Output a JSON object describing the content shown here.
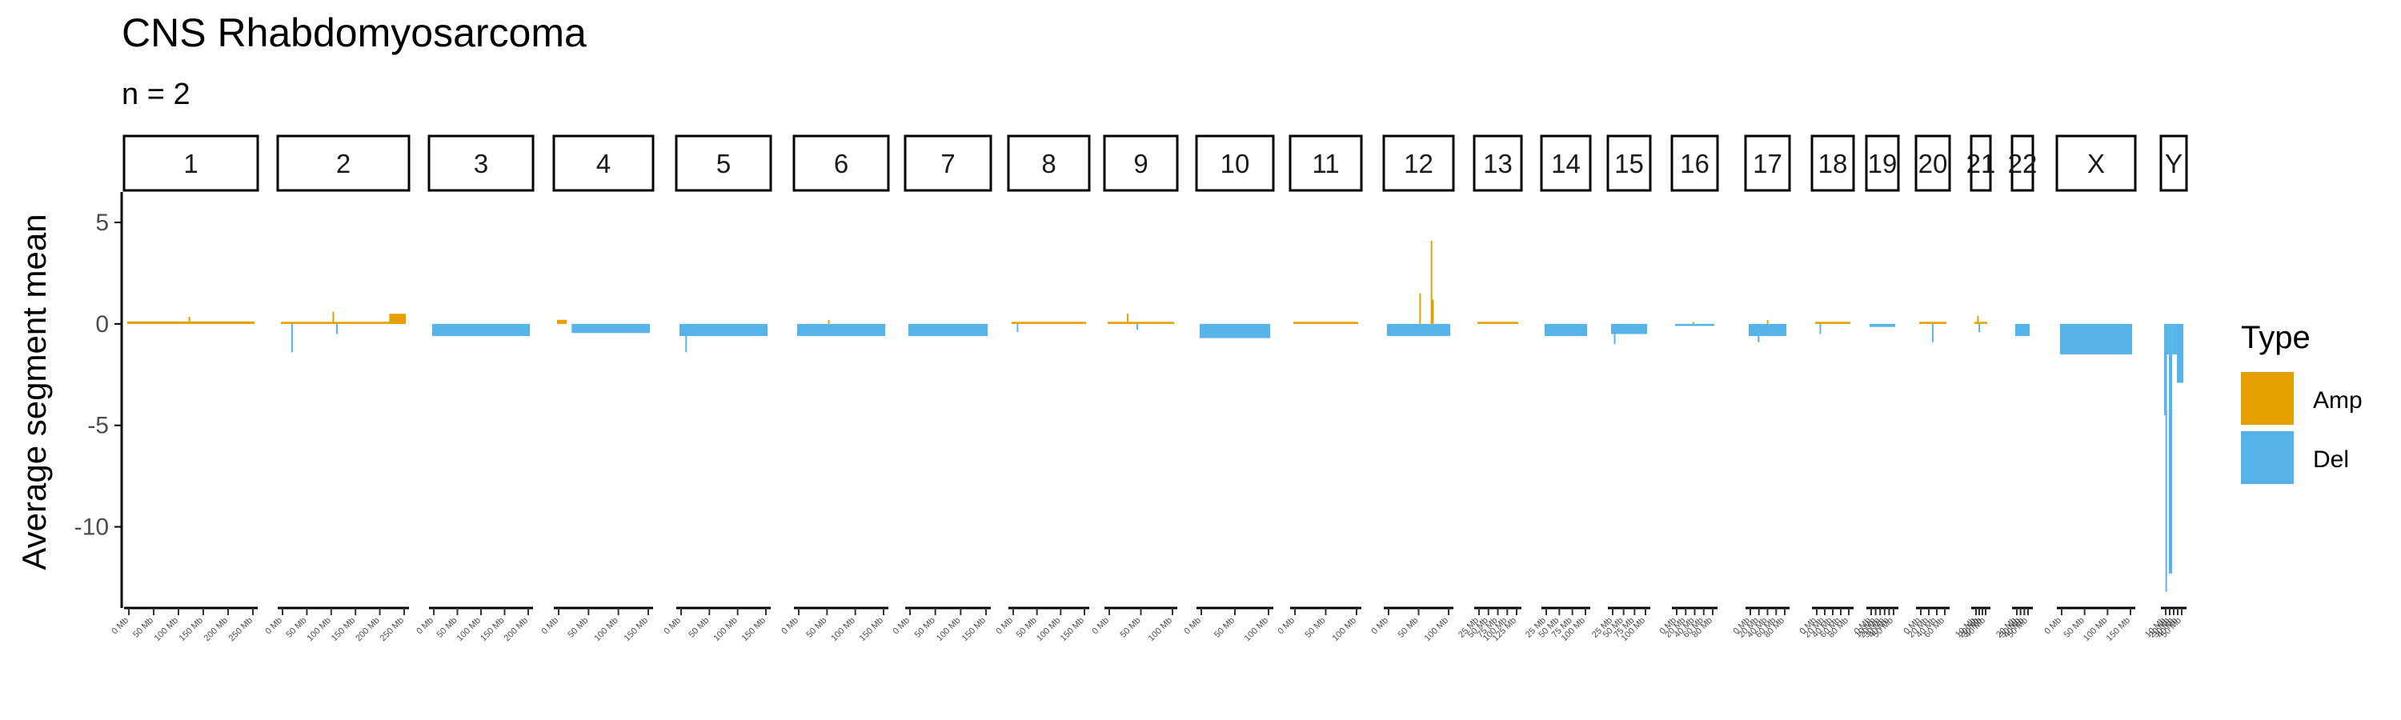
{
  "title": "CNS Rhabdomyosarcoma",
  "subtitle": "n = 2",
  "chart_data": {
    "type": "bar",
    "title": "CNS Rhabdomyosarcoma",
    "subtitle": "n = 2",
    "xlabel": "",
    "ylabel": "Average segment mean",
    "ylim": [
      -14,
      6.5
    ],
    "yticks": [
      5,
      0,
      -5,
      -10
    ],
    "grid": false,
    "legend": {
      "title": "Type",
      "position": "right",
      "entries": [
        "Amp",
        "Del"
      ]
    },
    "colors": {
      "Amp": "#E69F00",
      "Del": "#56B4E9"
    },
    "facets": [
      {
        "label": "1",
        "length_mb": 249,
        "ticks": [
          "0 Mb",
          "50 Mb",
          "100 Mb",
          "150 Mb",
          "200 Mb",
          "250 Mb"
        ],
        "segments": [
          {
            "start": 0,
            "end": 249,
            "value": 0.12,
            "type": "Amp"
          },
          {
            "start": 120,
            "end": 121,
            "value": 0.35,
            "type": "Amp"
          }
        ]
      },
      {
        "label": "2",
        "length_mb": 242,
        "ticks": [
          "0 Mb",
          "50 Mb",
          "100 Mb",
          "150 Mb",
          "200 Mb",
          "250 Mb"
        ],
        "segments": [
          {
            "start": 0,
            "end": 242,
            "value": 0.1,
            "type": "Amp"
          },
          {
            "start": 20,
            "end": 21,
            "value": -1.4,
            "type": "Del"
          },
          {
            "start": 100,
            "end": 102,
            "value": 0.6,
            "type": "Amp"
          },
          {
            "start": 107,
            "end": 108,
            "value": -0.5,
            "type": "Del"
          },
          {
            "start": 210,
            "end": 242,
            "value": 0.5,
            "type": "Amp"
          }
        ]
      },
      {
        "label": "3",
        "length_mb": 198,
        "ticks": [
          "0 Mb",
          "50 Mb",
          "100 Mb",
          "150 Mb",
          "200 Mb"
        ],
        "segments": [
          {
            "start": 0,
            "end": 198,
            "value": -0.6,
            "type": "Del"
          }
        ]
      },
      {
        "label": "4",
        "length_mb": 190,
        "ticks": [
          "0 Mb",
          "50 Mb",
          "100 Mb",
          "150 Mb"
        ],
        "segments": [
          {
            "start": 0,
            "end": 20,
            "value": 0.2,
            "type": "Amp"
          },
          {
            "start": 30,
            "end": 190,
            "value": -0.45,
            "type": "Del"
          }
        ]
      },
      {
        "label": "5",
        "length_mb": 181,
        "ticks": [
          "0 Mb",
          "50 Mb",
          "100 Mb",
          "150 Mb"
        ],
        "segments": [
          {
            "start": 0,
            "end": 181,
            "value": -0.6,
            "type": "Del"
          },
          {
            "start": 12,
            "end": 13,
            "value": -1.4,
            "type": "Del"
          }
        ]
      },
      {
        "label": "6",
        "length_mb": 171,
        "ticks": [
          "0 Mb",
          "50 Mb",
          "100 Mb",
          "150 Mb"
        ],
        "segments": [
          {
            "start": 0,
            "end": 171,
            "value": -0.6,
            "type": "Del"
          },
          {
            "start": 60,
            "end": 61,
            "value": 0.2,
            "type": "Amp"
          }
        ]
      },
      {
        "label": "7",
        "length_mb": 159,
        "ticks": [
          "0 Mb",
          "50 Mb",
          "100 Mb",
          "150 Mb"
        ],
        "segments": [
          {
            "start": 0,
            "end": 159,
            "value": -0.6,
            "type": "Del"
          }
        ]
      },
      {
        "label": "8",
        "length_mb": 145,
        "ticks": [
          "0 Mb",
          "50 Mb",
          "100 Mb",
          "150 Mb"
        ],
        "segments": [
          {
            "start": 0,
            "end": 145,
            "value": 0.1,
            "type": "Amp"
          },
          {
            "start": 10,
            "end": 11,
            "value": -0.4,
            "type": "Del"
          }
        ]
      },
      {
        "label": "9",
        "length_mb": 138,
        "ticks": [
          "0 Mb",
          "50 Mb",
          "100 Mb"
        ],
        "segments": [
          {
            "start": 0,
            "end": 138,
            "value": 0.1,
            "type": "Amp"
          },
          {
            "start": 40,
            "end": 41,
            "value": 0.5,
            "type": "Amp"
          },
          {
            "start": 60,
            "end": 61,
            "value": -0.3,
            "type": "Del"
          }
        ]
      },
      {
        "label": "10",
        "length_mb": 134,
        "ticks": [
          "0 Mb",
          "50 Mb",
          "100 Mb"
        ],
        "segments": [
          {
            "start": 0,
            "end": 134,
            "value": -0.7,
            "type": "Del"
          }
        ]
      },
      {
        "label": "11",
        "length_mb": 135,
        "ticks": [
          "0 Mb",
          "50 Mb",
          "100 Mb"
        ],
        "segments": [
          {
            "start": 0,
            "end": 135,
            "value": 0.1,
            "type": "Amp"
          }
        ]
      },
      {
        "label": "12",
        "length_mb": 133,
        "ticks": [
          "0 Mb",
          "50 Mb",
          "100 Mb"
        ],
        "segments": [
          {
            "start": 0,
            "end": 133,
            "value": -0.6,
            "type": "Del"
          },
          {
            "start": 68,
            "end": 69,
            "value": 1.5,
            "type": "Amp"
          },
          {
            "start": 92,
            "end": 93,
            "value": 4.1,
            "type": "Amp"
          },
          {
            "start": 95,
            "end": 96,
            "value": 1.2,
            "type": "Amp"
          }
        ]
      },
      {
        "label": "13",
        "length_mb": 115,
        "ticks": [
          "25 Mb",
          "50 Mb",
          "75 Mb",
          "100 Mb",
          "125 Mb"
        ],
        "segments": [
          {
            "start": 0,
            "end": 115,
            "value": 0.1,
            "type": "Amp"
          }
        ]
      },
      {
        "label": "14",
        "length_mb": 107,
        "ticks": [
          "25 Mb",
          "50 Mb",
          "75 Mb",
          "100 Mb"
        ],
        "segments": [
          {
            "start": 0,
            "end": 107,
            "value": -0.6,
            "type": "Del"
          }
        ]
      },
      {
        "label": "15",
        "length_mb": 102,
        "ticks": [
          "25 Mb",
          "50 Mb",
          "75 Mb",
          "100 Mb"
        ],
        "segments": [
          {
            "start": 0,
            "end": 102,
            "value": -0.5,
            "type": "Del"
          },
          {
            "start": 8,
            "end": 9,
            "value": -1.0,
            "type": "Del"
          }
        ]
      },
      {
        "label": "16",
        "length_mb": 90,
        "ticks": [
          "0 Mb",
          "20 Mb",
          "40 Mb",
          "60 Mb",
          "80 Mb"
        ],
        "segments": [
          {
            "start": 0,
            "end": 90,
            "value": -0.1,
            "type": "Del"
          },
          {
            "start": 40,
            "end": 41,
            "value": 0.1,
            "type": "Amp"
          }
        ]
      },
      {
        "label": "17",
        "length_mb": 83,
        "ticks": [
          "0 Mb",
          "20 Mb",
          "40 Mb",
          "60 Mb",
          "80 Mb"
        ],
        "segments": [
          {
            "start": 0,
            "end": 83,
            "value": -0.6,
            "type": "Del"
          },
          {
            "start": 20,
            "end": 21,
            "value": -0.9,
            "type": "Del"
          },
          {
            "start": 40,
            "end": 41,
            "value": 0.2,
            "type": "Amp"
          }
        ]
      },
      {
        "label": "18",
        "length_mb": 80,
        "ticks": [
          "0 Mb",
          "20 Mb",
          "40 Mb",
          "60 Mb",
          "80 Mb"
        ],
        "segments": [
          {
            "start": 0,
            "end": 80,
            "value": 0.1,
            "type": "Amp"
          },
          {
            "start": 10,
            "end": 11,
            "value": -0.5,
            "type": "Del"
          }
        ]
      },
      {
        "label": "19",
        "length_mb": 59,
        "ticks": [
          "0 Mb",
          "10 Mb",
          "20 Mb",
          "30 Mb",
          "40 Mb",
          "50 Mb"
        ],
        "segments": [
          {
            "start": 0,
            "end": 59,
            "value": -0.15,
            "type": "Del"
          }
        ]
      },
      {
        "label": "20",
        "length_mb": 64,
        "ticks": [
          "0 Mb",
          "20 Mb",
          "40 Mb",
          "60 Mb"
        ],
        "segments": [
          {
            "start": 0,
            "end": 64,
            "value": 0.1,
            "type": "Amp"
          },
          {
            "start": 30,
            "end": 31,
            "value": -0.9,
            "type": "Del"
          }
        ]
      },
      {
        "label": "21",
        "length_mb": 47,
        "ticks": [
          "10 Mb",
          "20 Mb",
          "30 Mb",
          "40 Mb"
        ],
        "segments": [
          {
            "start": 0,
            "end": 47,
            "value": 0.1,
            "type": "Amp"
          },
          {
            "start": 10,
            "end": 11,
            "value": 0.4,
            "type": "Amp"
          },
          {
            "start": 15,
            "end": 16,
            "value": -0.4,
            "type": "Del"
          }
        ]
      },
      {
        "label": "22",
        "length_mb": 51,
        "ticks": [
          "20 Mb",
          "30 Mb",
          "40 Mb",
          "50 Mb"
        ],
        "segments": [
          {
            "start": 0,
            "end": 51,
            "value": -0.6,
            "type": "Del"
          }
        ]
      },
      {
        "label": "X",
        "length_mb": 156,
        "ticks": [
          "0 Mb",
          "50 Mb",
          "100 Mb",
          "150 Mb"
        ],
        "segments": [
          {
            "start": 0,
            "end": 156,
            "value": -1.5,
            "type": "Del"
          }
        ]
      },
      {
        "label": "Y",
        "length_mb": 57,
        "ticks": [
          "10 Mb",
          "20 Mb",
          "30 Mb",
          "40 Mb",
          "50 Mb"
        ],
        "segments": [
          {
            "start": 0,
            "end": 4,
            "value": -4.5,
            "type": "Del"
          },
          {
            "start": 4,
            "end": 8,
            "value": -13.2,
            "type": "Del"
          },
          {
            "start": 8,
            "end": 14,
            "value": -1.5,
            "type": "Del"
          },
          {
            "start": 14,
            "end": 24,
            "value": -12.3,
            "type": "Del"
          },
          {
            "start": 24,
            "end": 38,
            "value": -1.5,
            "type": "Del"
          },
          {
            "start": 38,
            "end": 57,
            "value": -2.9,
            "type": "Del"
          }
        ]
      }
    ]
  }
}
